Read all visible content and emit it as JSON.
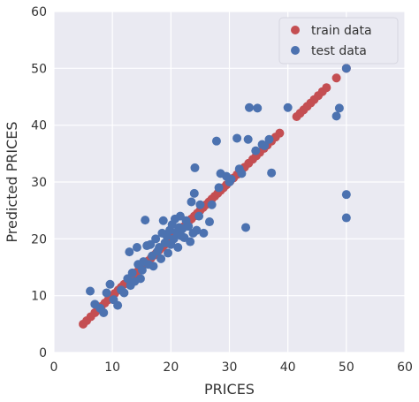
{
  "chart_data": {
    "type": "scatter",
    "title": "",
    "xlabel": "PRICES",
    "ylabel": "Predicted PRICES",
    "xlim": [
      0,
      60
    ],
    "ylim": [
      0,
      60
    ],
    "xticks": [
      "0",
      "10",
      "20",
      "30",
      "40",
      "50",
      "60"
    ],
    "yticks": [
      "0",
      "10",
      "20",
      "30",
      "40",
      "50",
      "60"
    ],
    "grid": true,
    "legend_position": "top-right",
    "background": "#eaeaf2",
    "series": [
      {
        "name": "train data",
        "color": "#c44e52",
        "points": [
          [
            5.0,
            5.0
          ],
          [
            5.6,
            5.6
          ],
          [
            6.3,
            6.3
          ],
          [
            7.0,
            7.0
          ],
          [
            7.5,
            7.5
          ],
          [
            8.1,
            8.1
          ],
          [
            8.7,
            8.7
          ],
          [
            9.3,
            9.3
          ],
          [
            9.9,
            9.9
          ],
          [
            10.4,
            10.4
          ],
          [
            11.0,
            11.0
          ],
          [
            11.5,
            11.5
          ],
          [
            12.0,
            12.0
          ],
          [
            12.6,
            12.6
          ],
          [
            13.1,
            13.1
          ],
          [
            13.6,
            13.6
          ],
          [
            14.1,
            14.1
          ],
          [
            14.6,
            14.6
          ],
          [
            15.1,
            15.1
          ],
          [
            15.6,
            15.6
          ],
          [
            16.1,
            16.1
          ],
          [
            16.6,
            16.6
          ],
          [
            17.1,
            17.1
          ],
          [
            17.5,
            17.5
          ],
          [
            18.0,
            18.0
          ],
          [
            18.5,
            18.5
          ],
          [
            19.0,
            19.0
          ],
          [
            19.4,
            19.4
          ],
          [
            19.9,
            19.9
          ],
          [
            20.3,
            20.3
          ],
          [
            20.8,
            20.8
          ],
          [
            21.2,
            21.2
          ],
          [
            21.7,
            21.7
          ],
          [
            22.1,
            22.1
          ],
          [
            22.6,
            22.6
          ],
          [
            23.0,
            23.0
          ],
          [
            23.5,
            23.5
          ],
          [
            24.0,
            24.0
          ],
          [
            24.5,
            24.5
          ],
          [
            25.0,
            25.0
          ],
          [
            25.5,
            25.5
          ],
          [
            26.0,
            26.0
          ],
          [
            26.5,
            26.5
          ],
          [
            27.0,
            27.0
          ],
          [
            27.5,
            27.5
          ],
          [
            28.0,
            28.0
          ],
          [
            28.5,
            28.5
          ],
          [
            29.0,
            29.0
          ],
          [
            29.5,
            29.5
          ],
          [
            30.1,
            30.1
          ],
          [
            30.7,
            30.7
          ],
          [
            31.3,
            31.3
          ],
          [
            32.0,
            32.0
          ],
          [
            32.6,
            32.6
          ],
          [
            33.3,
            33.3
          ],
          [
            34.0,
            34.0
          ],
          [
            34.6,
            34.6
          ],
          [
            35.2,
            35.2
          ],
          [
            35.9,
            35.9
          ],
          [
            36.5,
            36.5
          ],
          [
            37.2,
            37.2
          ],
          [
            37.9,
            37.9
          ],
          [
            38.6,
            38.6
          ],
          [
            41.5,
            41.5
          ],
          [
            42.1,
            42.1
          ],
          [
            42.7,
            42.7
          ],
          [
            43.3,
            43.3
          ],
          [
            43.9,
            43.9
          ],
          [
            44.5,
            44.5
          ],
          [
            45.2,
            45.2
          ],
          [
            45.9,
            45.9
          ],
          [
            46.6,
            46.6
          ],
          [
            48.3,
            48.3
          ],
          [
            50.0,
            50.0
          ]
        ]
      },
      {
        "name": "test data",
        "color": "#4c72b0",
        "points": [
          [
            6.2,
            10.8
          ],
          [
            7.0,
            8.5
          ],
          [
            7.9,
            7.8
          ],
          [
            8.5,
            7.0
          ],
          [
            9.0,
            10.5
          ],
          [
            9.6,
            12.0
          ],
          [
            10.2,
            9.3
          ],
          [
            10.9,
            8.3
          ],
          [
            11.5,
            11.0
          ],
          [
            12.0,
            10.5
          ],
          [
            12.6,
            13.0
          ],
          [
            12.9,
            17.7
          ],
          [
            13.1,
            11.8
          ],
          [
            13.4,
            14.0
          ],
          [
            13.8,
            12.5
          ],
          [
            14.2,
            18.5
          ],
          [
            14.4,
            15.5
          ],
          [
            14.8,
            13.0
          ],
          [
            15.1,
            14.5
          ],
          [
            15.3,
            16.0
          ],
          [
            15.6,
            23.3
          ],
          [
            15.9,
            18.8
          ],
          [
            16.2,
            15.5
          ],
          [
            16.5,
            19.0
          ],
          [
            16.8,
            17.0
          ],
          [
            17.0,
            15.2
          ],
          [
            17.4,
            20.0
          ],
          [
            17.7,
            17.8
          ],
          [
            18.0,
            18.5
          ],
          [
            18.3,
            16.5
          ],
          [
            18.5,
            21.0
          ],
          [
            18.7,
            23.2
          ],
          [
            19.0,
            19.3
          ],
          [
            19.3,
            20.5
          ],
          [
            19.5,
            17.5
          ],
          [
            19.8,
            21.5
          ],
          [
            20.0,
            19.0
          ],
          [
            20.2,
            22.5
          ],
          [
            20.5,
            20.0
          ],
          [
            20.7,
            23.5
          ],
          [
            21.0,
            21.2
          ],
          [
            21.2,
            18.5
          ],
          [
            21.4,
            22.0
          ],
          [
            21.6,
            24.0
          ],
          [
            21.8,
            20.5
          ],
          [
            22.0,
            21.8
          ],
          [
            22.3,
            20.2
          ],
          [
            22.6,
            23.2
          ],
          [
            23.0,
            22.2
          ],
          [
            23.3,
            19.5
          ],
          [
            23.5,
            26.5
          ],
          [
            23.8,
            21.0
          ],
          [
            24.0,
            28.0
          ],
          [
            24.1,
            32.5
          ],
          [
            24.4,
            21.5
          ],
          [
            24.8,
            24.0
          ],
          [
            25.0,
            26.0
          ],
          [
            25.6,
            21.0
          ],
          [
            26.6,
            23.0
          ],
          [
            27.0,
            26.0
          ],
          [
            27.8,
            37.2
          ],
          [
            28.2,
            29.0
          ],
          [
            28.5,
            31.5
          ],
          [
            29.5,
            31.0
          ],
          [
            30.0,
            30.0
          ],
          [
            30.3,
            30.5
          ],
          [
            31.3,
            37.7
          ],
          [
            31.7,
            32.3
          ],
          [
            32.1,
            31.5
          ],
          [
            32.8,
            22.0
          ],
          [
            33.2,
            37.5
          ],
          [
            33.4,
            43.1
          ],
          [
            34.5,
            35.5
          ],
          [
            34.8,
            43.0
          ],
          [
            35.6,
            36.6
          ],
          [
            36.0,
            36.4
          ],
          [
            36.8,
            37.5
          ],
          [
            37.2,
            31.6
          ],
          [
            40.0,
            43.1
          ],
          [
            48.3,
            41.6
          ],
          [
            48.8,
            43.0
          ],
          [
            50.0,
            50.0
          ],
          [
            50.0,
            27.8
          ],
          [
            50.0,
            23.7
          ]
        ]
      }
    ]
  }
}
